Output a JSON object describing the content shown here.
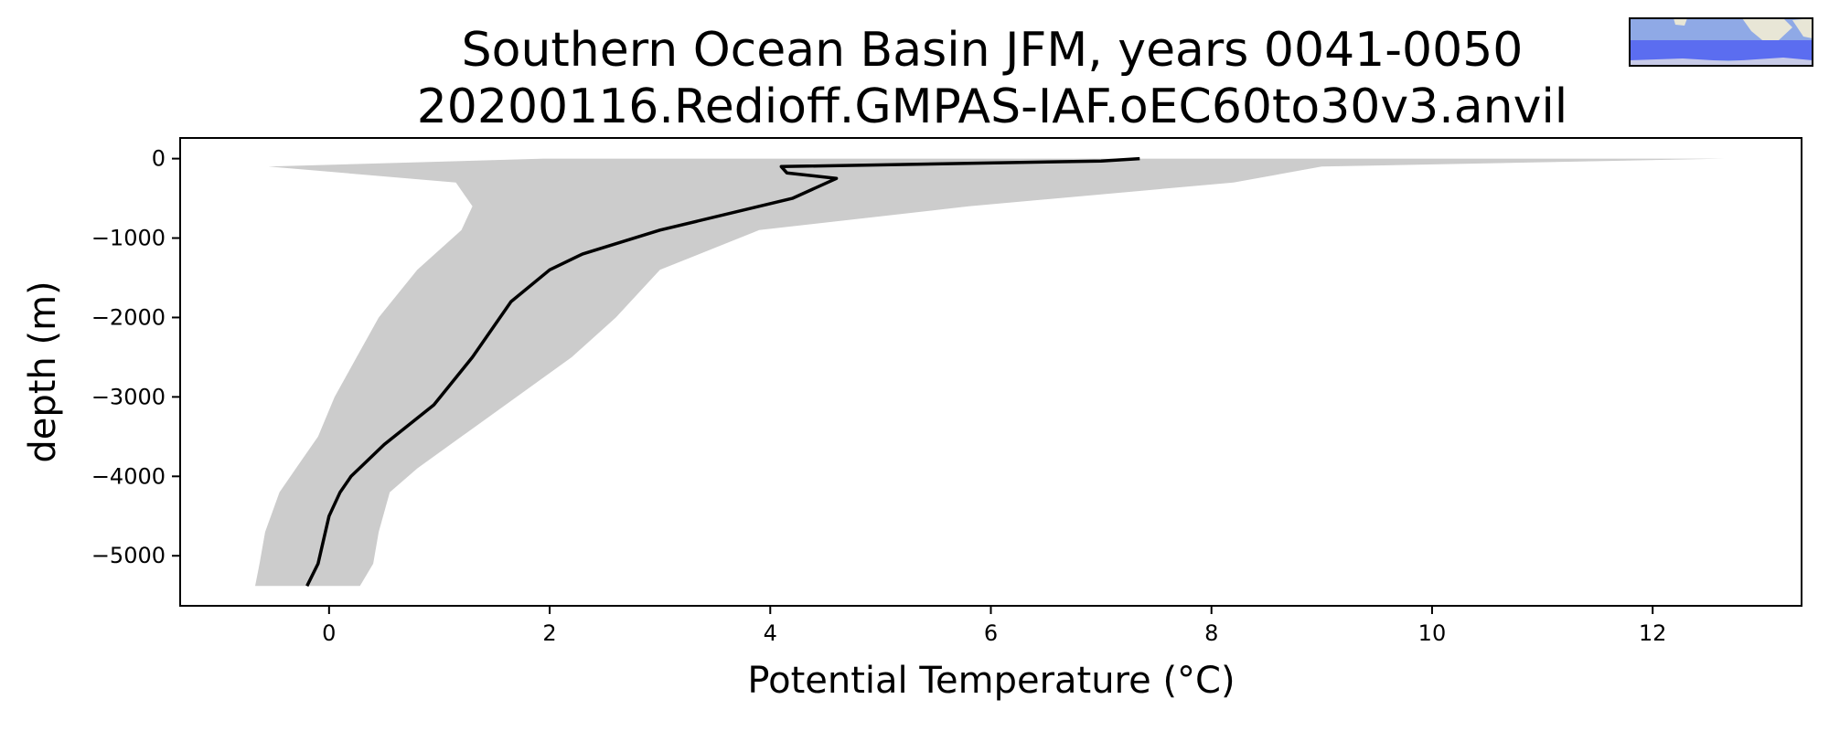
{
  "chart_data": {
    "type": "area",
    "title": "Southern Ocean Basin JFM, years 0041-0050",
    "subtitle": "20200116.Redioff.GMPAS-IAF.oEC60to30v3.anvil",
    "xlabel": "Potential Temperature (°C)",
    "ylabel": "depth (m)",
    "xlim": [
      -1.35,
      13.35
    ],
    "ylim": [
      -5630,
      260
    ],
    "xticks": [
      0,
      2,
      4,
      6,
      8,
      10,
      12
    ],
    "yticks": [
      0,
      -1000,
      -2000,
      -3000,
      -4000,
      -5000
    ],
    "xtick_labels": [
      "0",
      "2",
      "4",
      "6",
      "8",
      "10",
      "12"
    ],
    "ytick_labels": [
      "0",
      "−1000",
      "−2000",
      "−3000",
      "−4000",
      "−5000"
    ],
    "grid": false,
    "colors": {
      "mean_line": "#000000",
      "range_fill": "#cccccc",
      "axes": "#000000"
    },
    "series": [
      {
        "kind": "line",
        "x": [
          7.35,
          7.0,
          4.1,
          4.15,
          4.6,
          4.2,
          3.0,
          2.3,
          2.0,
          1.65,
          1.3,
          0.95,
          0.5,
          0.2,
          0.1,
          0.0,
          -0.1,
          -0.2
        ],
        "y": [
          0,
          -30,
          -100,
          -180,
          -250,
          -500,
          -900,
          -1200,
          -1400,
          -1800,
          -2500,
          -3100,
          -3600,
          -4000,
          -4200,
          -4500,
          -5100,
          -5380
        ]
      },
      {
        "kind": "band",
        "depth": [
          0,
          -100,
          -300,
          -600,
          -900,
          -1400,
          -2000,
          -2500,
          -3000,
          -3500,
          -3900,
          -4200,
          -4700,
          -5100,
          -5380
        ],
        "lower": [
          1.95,
          -0.55,
          1.15,
          1.3,
          1.2,
          0.8,
          0.45,
          0.25,
          0.05,
          -0.1,
          -0.3,
          -0.45,
          -0.58,
          -0.63,
          -0.67
        ],
        "upper": [
          12.65,
          9.0,
          8.2,
          5.8,
          3.9,
          3.0,
          2.6,
          2.2,
          1.7,
          1.2,
          0.8,
          0.55,
          0.45,
          0.4,
          0.28
        ]
      }
    ],
    "inset_map": {
      "region": "Southern Ocean Basin",
      "placement": "top-right"
    }
  }
}
